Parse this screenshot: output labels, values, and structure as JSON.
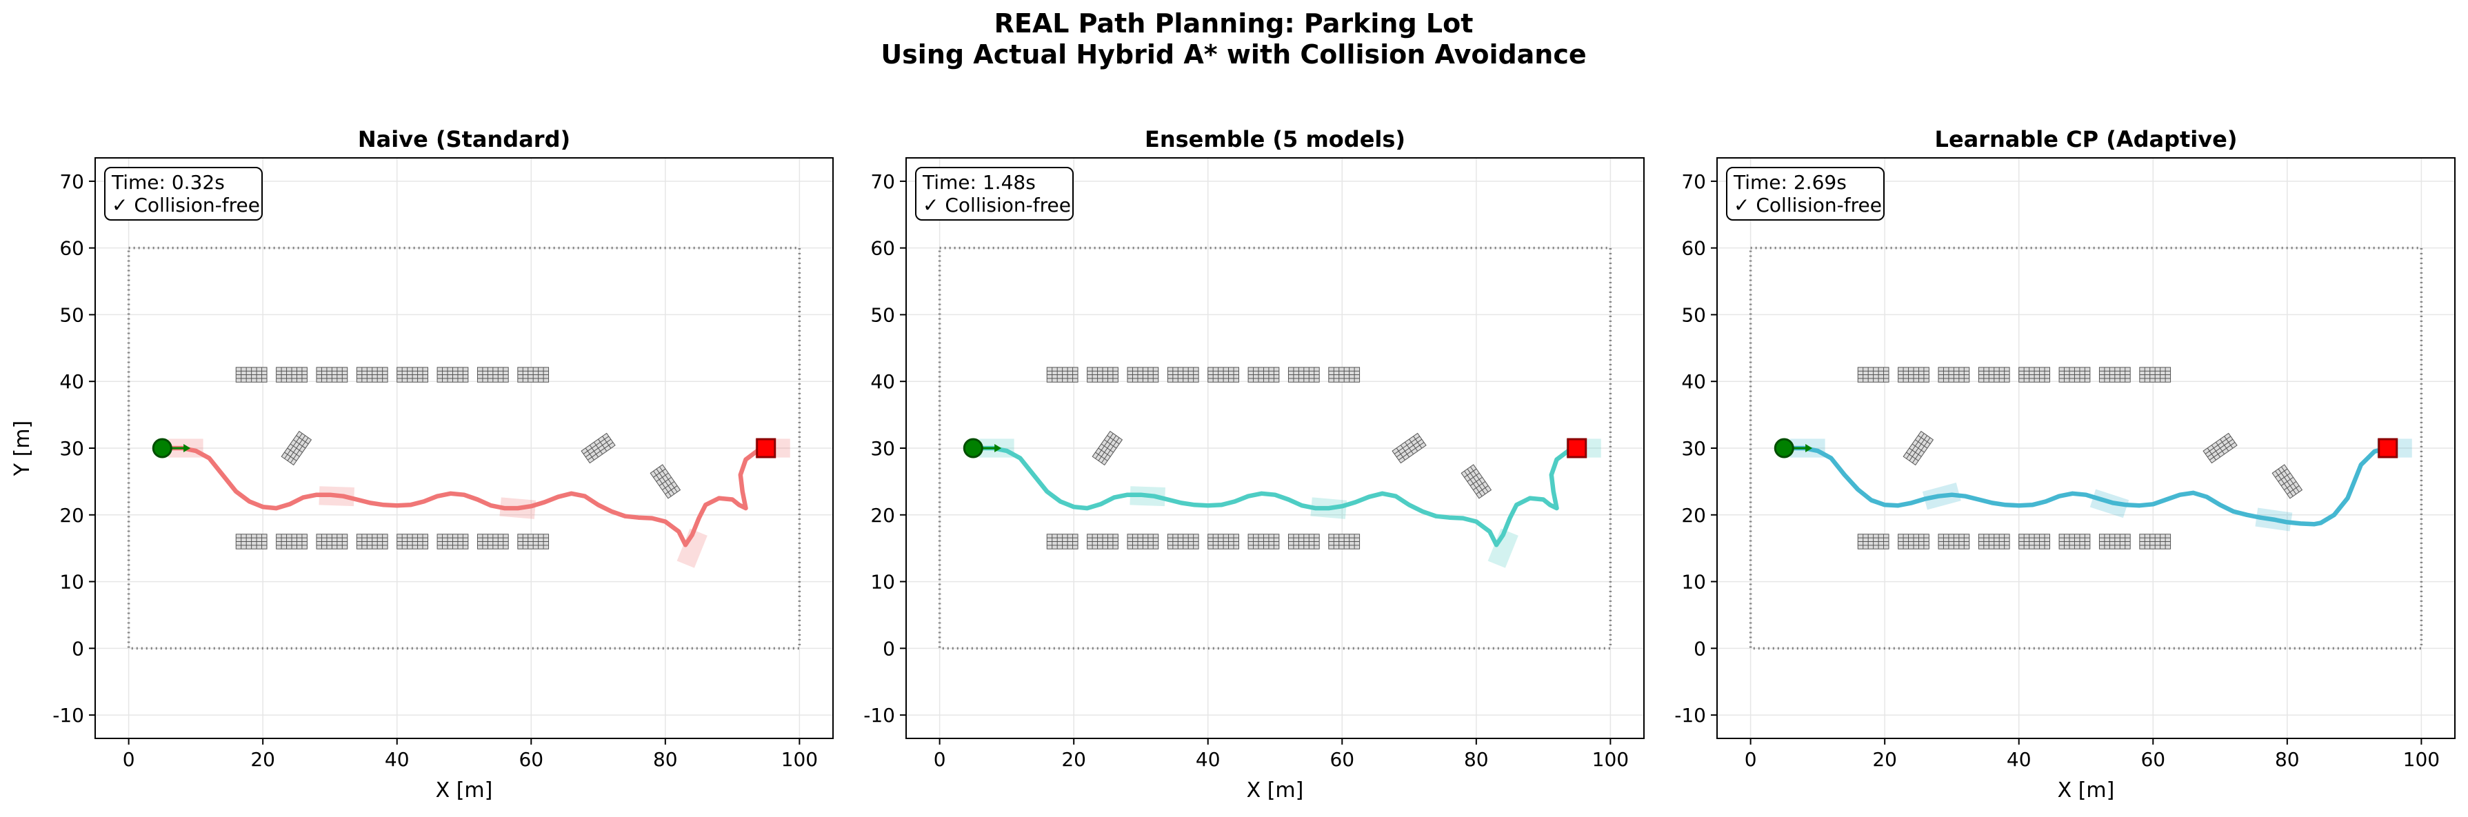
{
  "figure": {
    "title_line1": "REAL Path Planning: Parking Lot",
    "title_line2": "Using Actual Hybrid A* with Collision Avoidance"
  },
  "colors": {
    "start": "#008000",
    "goal": "#ff0000",
    "obstacle": "#808080",
    "boundary": "#808080",
    "grid": "#e6e6e6"
  },
  "chart_data": [
    {
      "type": "line",
      "title": "Naive (Standard)",
      "xlabel": "X [m]",
      "ylabel": "Y [m]",
      "xlim": [
        -5,
        105
      ],
      "ylim": [
        -13.5,
        73.5
      ],
      "xticks": [
        0,
        20,
        40,
        60,
        80,
        100
      ],
      "yticks": [
        -10,
        0,
        10,
        20,
        30,
        40,
        50,
        60,
        70
      ],
      "grid": true,
      "info": {
        "time": "Time: 0.32s",
        "status": "✓ Collision-free"
      },
      "series": [
        {
          "color": "#f07676",
          "points": [
            [
              5,
              30
            ],
            [
              8,
              30
            ],
            [
              10,
              29.6
            ],
            [
              12,
              28.5
            ],
            [
              14,
              26
            ],
            [
              16,
              23.5
            ],
            [
              18,
              22
            ],
            [
              20,
              21.2
            ],
            [
              22,
              21
            ],
            [
              24,
              21.6
            ],
            [
              26,
              22.6
            ],
            [
              28,
              23
            ],
            [
              30,
              23
            ],
            [
              32,
              22.8
            ],
            [
              34,
              22.3
            ],
            [
              36,
              21.8
            ],
            [
              38,
              21.5
            ],
            [
              40,
              21.4
            ],
            [
              42,
              21.5
            ],
            [
              44,
              22
            ],
            [
              46,
              22.8
            ],
            [
              48,
              23.2
            ],
            [
              50,
              23
            ],
            [
              52,
              22.3
            ],
            [
              54,
              21.4
            ],
            [
              56,
              21
            ],
            [
              58,
              21
            ],
            [
              60,
              21.3
            ],
            [
              62,
              21.9
            ],
            [
              64,
              22.7
            ],
            [
              66,
              23.2
            ],
            [
              68,
              22.8
            ],
            [
              70,
              21.5
            ],
            [
              72,
              20.5
            ],
            [
              74,
              19.8
            ],
            [
              76,
              19.6
            ],
            [
              78,
              19.5
            ],
            [
              80,
              19
            ],
            [
              82,
              17.5
            ],
            [
              83,
              15.5
            ],
            [
              84,
              17
            ],
            [
              85,
              19.5
            ],
            [
              86,
              21.5
            ],
            [
              88,
              22.5
            ],
            [
              90,
              22.3
            ],
            [
              91,
              21.5
            ],
            [
              92,
              21
            ],
            [
              91.5,
              23.5
            ],
            [
              91.2,
              26
            ],
            [
              92,
              28.3
            ],
            [
              94,
              29.8
            ],
            [
              95,
              30
            ]
          ]
        }
      ],
      "uncertainty_boxes": [
        {
          "x": 8.5,
          "y": 30,
          "angle": 0
        },
        {
          "x": 31,
          "y": 22.8,
          "angle": -2
        },
        {
          "x": 58,
          "y": 21,
          "angle": -5
        },
        {
          "x": 84,
          "y": 15,
          "angle": 68
        },
        {
          "x": 96,
          "y": 30,
          "angle": 0
        }
      ],
      "start": [
        5,
        30
      ],
      "goal": [
        95,
        30
      ]
    },
    {
      "type": "line",
      "title": "Ensemble (5 models)",
      "xlabel": "X [m]",
      "ylabel": "",
      "xlim": [
        -5,
        105
      ],
      "ylim": [
        -13.5,
        73.5
      ],
      "xticks": [
        0,
        20,
        40,
        60,
        80,
        100
      ],
      "yticks": [
        -10,
        0,
        10,
        20,
        30,
        40,
        50,
        60,
        70
      ],
      "grid": true,
      "info": {
        "time": "Time: 1.48s",
        "status": "✓ Collision-free"
      },
      "series": [
        {
          "color": "#4ecdc4",
          "points": [
            [
              5,
              30
            ],
            [
              8,
              30
            ],
            [
              10,
              29.6
            ],
            [
              12,
              28.5
            ],
            [
              14,
              26
            ],
            [
              16,
              23.5
            ],
            [
              18,
              22
            ],
            [
              20,
              21.2
            ],
            [
              22,
              21
            ],
            [
              24,
              21.6
            ],
            [
              26,
              22.6
            ],
            [
              28,
              23
            ],
            [
              30,
              23
            ],
            [
              32,
              22.8
            ],
            [
              34,
              22.3
            ],
            [
              36,
              21.8
            ],
            [
              38,
              21.5
            ],
            [
              40,
              21.4
            ],
            [
              42,
              21.5
            ],
            [
              44,
              22
            ],
            [
              46,
              22.8
            ],
            [
              48,
              23.2
            ],
            [
              50,
              23
            ],
            [
              52,
              22.3
            ],
            [
              54,
              21.4
            ],
            [
              56,
              21
            ],
            [
              58,
              21
            ],
            [
              60,
              21.3
            ],
            [
              62,
              21.9
            ],
            [
              64,
              22.7
            ],
            [
              66,
              23.2
            ],
            [
              68,
              22.8
            ],
            [
              70,
              21.5
            ],
            [
              72,
              20.5
            ],
            [
              74,
              19.8
            ],
            [
              76,
              19.6
            ],
            [
              78,
              19.5
            ],
            [
              80,
              19
            ],
            [
              82,
              17.5
            ],
            [
              83,
              15.5
            ],
            [
              84,
              17
            ],
            [
              85,
              19.5
            ],
            [
              86,
              21.5
            ],
            [
              88,
              22.5
            ],
            [
              90,
              22.3
            ],
            [
              91,
              21.5
            ],
            [
              92,
              21
            ],
            [
              91.5,
              23.5
            ],
            [
              91.2,
              26
            ],
            [
              92,
              28.3
            ],
            [
              94,
              29.8
            ],
            [
              95,
              30
            ]
          ]
        }
      ],
      "uncertainty_boxes": [
        {
          "x": 8.5,
          "y": 30,
          "angle": 0
        },
        {
          "x": 31,
          "y": 22.8,
          "angle": -2
        },
        {
          "x": 58,
          "y": 21,
          "angle": -5
        },
        {
          "x": 84,
          "y": 15,
          "angle": 68
        },
        {
          "x": 96,
          "y": 30,
          "angle": 0
        }
      ],
      "start": [
        5,
        30
      ],
      "goal": [
        95,
        30
      ]
    },
    {
      "type": "line",
      "title": "Learnable CP (Adaptive)",
      "xlabel": "X [m]",
      "ylabel": "",
      "xlim": [
        -5,
        105
      ],
      "ylim": [
        -13.5,
        73.5
      ],
      "xticks": [
        0,
        20,
        40,
        60,
        80,
        100
      ],
      "yticks": [
        -10,
        0,
        10,
        20,
        30,
        40,
        50,
        60,
        70
      ],
      "grid": true,
      "info": {
        "time": "Time: 2.69s",
        "status": "✓ Collision-free"
      },
      "series": [
        {
          "color": "#45b7d1",
          "points": [
            [
              5,
              30
            ],
            [
              8,
              30
            ],
            [
              10,
              29.6
            ],
            [
              12,
              28.5
            ],
            [
              14,
              26
            ],
            [
              16,
              23.8
            ],
            [
              18,
              22.2
            ],
            [
              20,
              21.5
            ],
            [
              22,
              21.4
            ],
            [
              24,
              21.8
            ],
            [
              26,
              22.4
            ],
            [
              28,
              22.8
            ],
            [
              30,
              23
            ],
            [
              32,
              22.8
            ],
            [
              34,
              22.3
            ],
            [
              36,
              21.8
            ],
            [
              38,
              21.5
            ],
            [
              40,
              21.4
            ],
            [
              42,
              21.5
            ],
            [
              44,
              22
            ],
            [
              46,
              22.8
            ],
            [
              48,
              23.2
            ],
            [
              50,
              23
            ],
            [
              52,
              22.4
            ],
            [
              54,
              21.8
            ],
            [
              56,
              21.5
            ],
            [
              58,
              21.4
            ],
            [
              60,
              21.6
            ],
            [
              62,
              22.3
            ],
            [
              64,
              23
            ],
            [
              66,
              23.3
            ],
            [
              68,
              22.7
            ],
            [
              70,
              21.5
            ],
            [
              72,
              20.5
            ],
            [
              74,
              20
            ],
            [
              76,
              19.6
            ],
            [
              78,
              19.3
            ],
            [
              80,
              18.9
            ],
            [
              82,
              18.7
            ],
            [
              84,
              18.6
            ],
            [
              85,
              18.8
            ],
            [
              87,
              20
            ],
            [
              89,
              22.5
            ],
            [
              90,
              25
            ],
            [
              91,
              27.5
            ],
            [
              93,
              29.5
            ],
            [
              95,
              30
            ]
          ]
        }
      ],
      "uncertainty_boxes": [
        {
          "x": 8.5,
          "y": 30,
          "angle": 0
        },
        {
          "x": 28.5,
          "y": 22.8,
          "angle": 15
        },
        {
          "x": 53.5,
          "y": 21.7,
          "angle": -18
        },
        {
          "x": 78,
          "y": 19.3,
          "angle": -8
        },
        {
          "x": 96,
          "y": 30,
          "angle": 0
        }
      ],
      "start": [
        5,
        30
      ],
      "goal": [
        95,
        30
      ]
    }
  ],
  "obstacles": {
    "row_top_y": 41,
    "row_bottom_y": 16,
    "row_x": [
      16,
      22,
      28,
      34,
      40,
      46,
      52,
      58
    ],
    "tilted": [
      {
        "x": 25,
        "y": 30,
        "angle": 55
      },
      {
        "x": 70,
        "y": 30,
        "angle": 35
      },
      {
        "x": 80,
        "y": 25,
        "angle": 125
      }
    ],
    "boundary": [
      0,
      100,
      0,
      60
    ]
  }
}
